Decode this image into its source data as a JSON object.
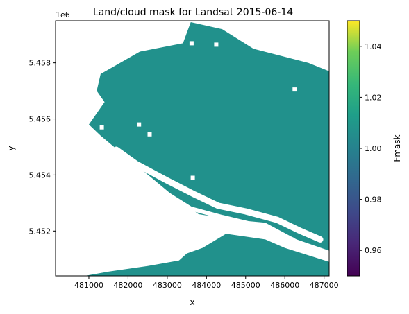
{
  "chart_data": {
    "type": "heatmap",
    "title": "Land/cloud mask for Landsat 2015-06-14",
    "xlabel": "x",
    "ylabel": "y",
    "y_offset_label": "1e6",
    "xlim": [
      480150,
      487130
    ],
    "ylim": [
      5450400,
      5459500
    ],
    "x_ticks": [
      481000,
      482000,
      483000,
      484000,
      485000,
      486000,
      487000
    ],
    "x_tick_labels": [
      "481000",
      "482000",
      "483000",
      "484000",
      "485000",
      "486000",
      "487000"
    ],
    "y_ticks": [
      5452000,
      5454000,
      5456000,
      5458000
    ],
    "y_tick_labels": [
      "5.452",
      "5.454",
      "5.456",
      "5.458"
    ],
    "colorbar": {
      "label": "Fmask",
      "range": [
        0.95,
        1.05
      ],
      "ticks": [
        0.96,
        0.98,
        1.0,
        1.02,
        1.04
      ],
      "tick_labels": [
        "0.96",
        "0.98",
        "1.00",
        "1.02",
        "1.04"
      ],
      "colormap": "viridis"
    },
    "mask_value": 1.0,
    "mask_color": "#21918c",
    "nodata_color": "#ffffff",
    "masked_region_outline": [
      [
        483600,
        5459450
      ],
      [
        484400,
        5459200
      ],
      [
        485200,
        5458500
      ],
      [
        486600,
        5458000
      ],
      [
        487130,
        5457700
      ],
      [
        487130,
        5451300
      ],
      [
        486300,
        5451700
      ],
      [
        485500,
        5452300
      ],
      [
        484700,
        5452400
      ],
      [
        483800,
        5452600
      ],
      [
        483200,
        5453200
      ],
      [
        482600,
        5453900
      ],
      [
        481900,
        5454700
      ],
      [
        481300,
        5455400
      ],
      [
        481000,
        5455800
      ],
      [
        481400,
        5456600
      ],
      [
        481200,
        5457000
      ],
      [
        481300,
        5457600
      ],
      [
        482300,
        5458400
      ],
      [
        483400,
        5458700
      ]
    ],
    "lower_masked_region_outline": [
      [
        487130,
        5450900
      ],
      [
        486000,
        5451400
      ],
      [
        485500,
        5451700
      ],
      [
        484500,
        5451900
      ],
      [
        483900,
        5451400
      ],
      [
        483500,
        5451200
      ],
      [
        483300,
        5450950
      ],
      [
        482500,
        5450750
      ],
      [
        481500,
        5450550
      ],
      [
        480900,
        5450400
      ],
      [
        487130,
        5450400
      ]
    ],
    "white_channels": [
      [
        [
          481700,
          5454900
        ],
        [
          482200,
          5454400
        ],
        [
          483000,
          5453800
        ],
        [
          483700,
          5453300
        ],
        [
          484300,
          5452900
        ],
        [
          485000,
          5452700
        ],
        [
          485800,
          5452400
        ],
        [
          486400,
          5452000
        ],
        [
          486900,
          5451700
        ]
      ],
      [
        [
          481500,
          5454500
        ],
        [
          482100,
          5454000
        ],
        [
          482800,
          5453500
        ],
        [
          483600,
          5452800
        ],
        [
          484400,
          5452500
        ],
        [
          485300,
          5452200
        ],
        [
          486200,
          5451700
        ]
      ]
    ],
    "white_holes": [
      [
        482280,
        5455800
      ],
      [
        482550,
        5455450
      ],
      [
        483650,
        5453900
      ],
      [
        481330,
        5455700
      ],
      [
        483620,
        5458700
      ],
      [
        486250,
        5457050
      ],
      [
        485000,
        5459000
      ],
      [
        484250,
        5458650
      ]
    ]
  }
}
